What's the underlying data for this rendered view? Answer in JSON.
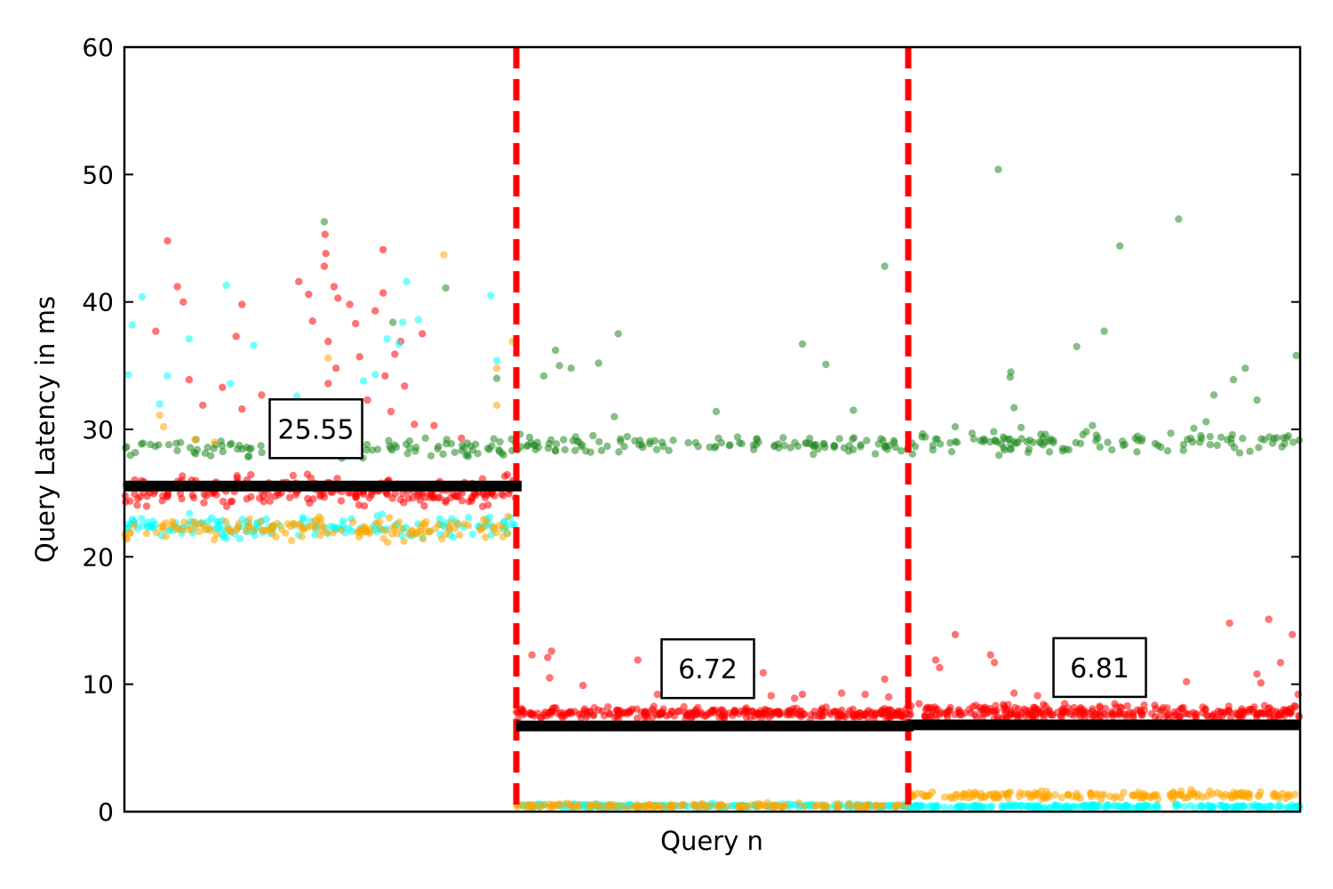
{
  "chart_data": {
    "type": "scatter",
    "title": "",
    "xlabel": "Query n",
    "ylabel": "Query Latency in ms",
    "xlim": [
      0,
      3000
    ],
    "ylim": [
      0,
      60
    ],
    "y_ticks": [
      "0",
      "10",
      "20",
      "30",
      "40",
      "50",
      "60"
    ],
    "x_ticks": [],
    "grid": false,
    "legend": "none",
    "phase_boundaries": [
      1000,
      2000
    ],
    "boundary_color": "#ff0000",
    "mean_lines": [
      {
        "x_start": 0,
        "x_end": 1000,
        "y": 25.55,
        "label": "25.55"
      },
      {
        "x_start": 1000,
        "x_end": 2000,
        "y": 6.72,
        "label": "6.72"
      },
      {
        "x_start": 2000,
        "x_end": 3000,
        "y": 6.81,
        "label": "6.81"
      }
    ],
    "series": [
      {
        "color": "#ff0000",
        "segments": [
          {
            "x_start": 0,
            "x_end": 1000,
            "center": 25.2,
            "spread": 0.9,
            "count": 260
          },
          {
            "x_start": 1000,
            "x_end": 2000,
            "center": 7.7,
            "spread": 0.35,
            "count": 300
          },
          {
            "x_start": 2000,
            "x_end": 3000,
            "center": 7.8,
            "spread": 0.45,
            "count": 300
          }
        ],
        "outliers": [
          [
            110,
            44.8
          ],
          [
            135,
            41.2
          ],
          [
            150,
            40.0
          ],
          [
            80,
            37.7
          ],
          [
            165,
            33.9
          ],
          [
            300,
            39.8
          ],
          [
            285,
            37.3
          ],
          [
            445,
            41.6
          ],
          [
            470,
            40.6
          ],
          [
            510,
            42.8
          ],
          [
            512,
            45.3
          ],
          [
            514,
            43.8
          ],
          [
            520,
            36.9
          ],
          [
            535,
            41.2
          ],
          [
            545,
            40.3
          ],
          [
            575,
            39.8
          ],
          [
            590,
            38.3
          ],
          [
            600,
            35.7
          ],
          [
            660,
            44.1
          ],
          [
            640,
            39.3
          ],
          [
            665,
            34.2
          ],
          [
            660,
            40.7
          ],
          [
            705,
            36.9
          ],
          [
            715,
            33.4
          ],
          [
            690,
            35.9
          ],
          [
            760,
            37.5
          ],
          [
            520,
            33.6
          ],
          [
            540,
            34.8
          ],
          [
            200,
            31.9
          ],
          [
            250,
            33.3
          ],
          [
            300,
            31.6
          ],
          [
            350,
            32.7
          ],
          [
            400,
            30.6
          ],
          [
            460,
            30.0
          ],
          [
            480,
            38.5
          ],
          [
            620,
            32.3
          ],
          [
            680,
            31.4
          ],
          [
            740,
            30.4
          ],
          [
            790,
            30.3
          ],
          [
            860,
            29.3
          ],
          [
            1040,
            12.3
          ],
          [
            1080,
            12.1
          ],
          [
            1090,
            12.6
          ],
          [
            1085,
            10.5
          ],
          [
            1170,
            9.9
          ],
          [
            1310,
            11.9
          ],
          [
            1360,
            9.2
          ],
          [
            1420,
            9.2
          ],
          [
            1490,
            10.4
          ],
          [
            1510,
            11.2
          ],
          [
            1570,
            12.5
          ],
          [
            1630,
            10.9
          ],
          [
            1650,
            9.1
          ],
          [
            1710,
            8.9
          ],
          [
            1730,
            9.2
          ],
          [
            1830,
            9.3
          ],
          [
            1890,
            9.2
          ],
          [
            1940,
            10.4
          ],
          [
            1950,
            9.0
          ],
          [
            2070,
            11.9
          ],
          [
            2080,
            11.3
          ],
          [
            2120,
            13.9
          ],
          [
            2210,
            12.3
          ],
          [
            2220,
            11.7
          ],
          [
            2270,
            9.3
          ],
          [
            2330,
            9.1
          ],
          [
            2480,
            10.2
          ],
          [
            2580,
            10.2
          ],
          [
            2710,
            10.2
          ],
          [
            2820,
            14.8
          ],
          [
            2890,
            10.8
          ],
          [
            2900,
            10.1
          ],
          [
            2920,
            15.1
          ],
          [
            2950,
            11.7
          ],
          [
            2980,
            13.9
          ],
          [
            2995,
            9.2
          ]
        ]
      },
      {
        "color": "#228b22",
        "segments": [
          {
            "x_start": 0,
            "x_end": 1000,
            "center": 28.6,
            "spread": 0.7,
            "count": 110
          },
          {
            "x_start": 1000,
            "x_end": 2000,
            "center": 28.8,
            "spread": 0.6,
            "count": 120
          },
          {
            "x_start": 2000,
            "x_end": 3000,
            "center": 29.0,
            "spread": 0.65,
            "count": 120
          }
        ],
        "outliers": [
          [
            510,
            46.3
          ],
          [
            820,
            41.1
          ],
          [
            685,
            38.4
          ],
          [
            950,
            34.0
          ],
          [
            1070,
            34.2
          ],
          [
            1100,
            36.2
          ],
          [
            1110,
            35.0
          ],
          [
            1140,
            34.8
          ],
          [
            1210,
            35.2
          ],
          [
            1250,
            31.0
          ],
          [
            1260,
            37.5
          ],
          [
            1510,
            31.4
          ],
          [
            1730,
            36.7
          ],
          [
            1790,
            35.1
          ],
          [
            1860,
            31.5
          ],
          [
            1940,
            42.8
          ],
          [
            2230,
            50.4
          ],
          [
            2260,
            34.1
          ],
          [
            2262,
            34.5
          ],
          [
            2270,
            31.7
          ],
          [
            2430,
            36.5
          ],
          [
            2500,
            37.7
          ],
          [
            2540,
            44.4
          ],
          [
            2690,
            46.5
          ],
          [
            2780,
            32.7
          ],
          [
            2830,
            33.9
          ],
          [
            2860,
            34.8
          ],
          [
            2890,
            32.3
          ],
          [
            2990,
            35.8
          ],
          [
            2760,
            30.6
          ],
          [
            2670,
            29.7
          ],
          [
            2470,
            30.3
          ],
          [
            2350,
            29.6
          ],
          [
            2120,
            30.2
          ]
        ]
      },
      {
        "color": "#00ffff",
        "segments": [
          {
            "x_start": 0,
            "x_end": 1000,
            "center": 22.4,
            "spread": 0.65,
            "count": 160
          },
          {
            "x_start": 1000,
            "x_end": 2000,
            "center": 0.45,
            "spread": 0.12,
            "count": 220
          },
          {
            "x_start": 2000,
            "x_end": 3000,
            "center": 0.4,
            "spread": 0.12,
            "count": 220
          }
        ],
        "outliers": [
          [
            45,
            40.4
          ],
          [
            20,
            38.2
          ],
          [
            10,
            34.3
          ],
          [
            260,
            41.3
          ],
          [
            110,
            34.2
          ],
          [
            90,
            32.0
          ],
          [
            165,
            37.1
          ],
          [
            720,
            41.6
          ],
          [
            670,
            37.1
          ],
          [
            700,
            36.7
          ],
          [
            710,
            38.4
          ],
          [
            750,
            38.6
          ],
          [
            640,
            34.3
          ],
          [
            950,
            35.4
          ],
          [
            935,
            40.5
          ],
          [
            610,
            33.8
          ],
          [
            330,
            36.6
          ],
          [
            270,
            33.6
          ],
          [
            440,
            32.6
          ],
          [
            580,
            30.2
          ]
        ]
      },
      {
        "color": "#ffa500",
        "segments": [
          {
            "x_start": 0,
            "x_end": 1000,
            "center": 22.2,
            "spread": 0.7,
            "count": 150
          },
          {
            "x_start": 1000,
            "x_end": 2000,
            "center": 0.45,
            "spread": 0.15,
            "count": 150
          },
          {
            "x_start": 2000,
            "x_end": 3000,
            "center": 1.3,
            "spread": 0.25,
            "count": 180
          }
        ],
        "outliers": [
          [
            815,
            43.7
          ],
          [
            990,
            36.9
          ],
          [
            950,
            34.8
          ],
          [
            520,
            35.6
          ],
          [
            90,
            31.1
          ],
          [
            100,
            30.2
          ],
          [
            180,
            29.2
          ],
          [
            230,
            29.0
          ],
          [
            950,
            31.9
          ]
        ]
      }
    ]
  }
}
